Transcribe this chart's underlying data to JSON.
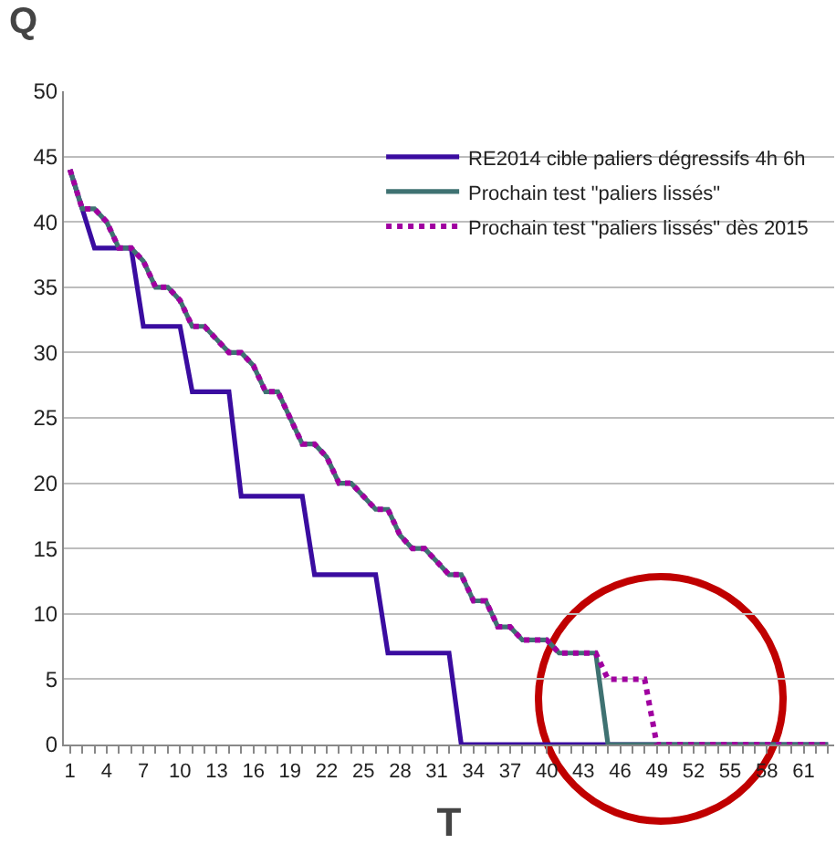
{
  "chart_data": {
    "type": "line",
    "xlabel": "T",
    "ylabel": "Q",
    "x": [
      1,
      2,
      3,
      4,
      5,
      6,
      7,
      8,
      9,
      10,
      11,
      12,
      13,
      14,
      15,
      16,
      17,
      18,
      19,
      20,
      21,
      22,
      23,
      24,
      25,
      26,
      27,
      28,
      29,
      30,
      31,
      32,
      33,
      34,
      35,
      36,
      37,
      38,
      39,
      40,
      41,
      42,
      43,
      44,
      45,
      46,
      47,
      48,
      49,
      50,
      51,
      52,
      53,
      54,
      55,
      56,
      57,
      58,
      59,
      60,
      61,
      62,
      63
    ],
    "series": [
      {
        "name": "RE2014 cible paliers dégressifs 4h 6h",
        "color": "#3a0ca0",
        "line_style": "solid",
        "values": [
          44,
          41,
          38,
          38,
          38,
          38,
          32,
          32,
          32,
          32,
          27,
          27,
          27,
          27,
          19,
          19,
          19,
          19,
          19,
          19,
          13,
          13,
          13,
          13,
          13,
          13,
          7,
          7,
          7,
          7,
          7,
          7,
          0,
          0,
          0,
          0,
          0,
          0,
          0,
          0,
          0,
          0,
          0,
          0,
          0,
          0,
          0,
          0,
          0,
          0,
          0,
          0,
          0,
          0,
          0,
          0,
          0,
          0,
          0,
          0,
          0,
          0,
          0
        ]
      },
      {
        "name": "Prochain test \"paliers lissés\"",
        "color": "#3f7272",
        "line_style": "solid",
        "values": [
          44,
          41,
          41,
          40,
          38,
          38,
          37,
          35,
          35,
          34,
          32,
          32,
          31,
          30,
          30,
          29,
          27,
          27,
          25,
          23,
          23,
          22,
          20,
          20,
          19,
          18,
          18,
          16,
          15,
          15,
          14,
          13,
          13,
          11,
          11,
          9,
          9,
          8,
          8,
          8,
          7,
          7,
          7,
          7,
          0,
          0,
          0,
          0,
          0,
          0,
          0,
          0,
          0,
          0,
          0,
          0,
          0,
          0,
          0,
          0,
          0,
          0,
          0
        ]
      },
      {
        "name": "Prochain test \"paliers lissés\" dès 2015",
        "color": "#a000a0",
        "line_style": "dotted",
        "values": [
          44,
          41,
          41,
          40,
          38,
          38,
          37,
          35,
          35,
          34,
          32,
          32,
          31,
          30,
          30,
          29,
          27,
          27,
          25,
          23,
          23,
          22,
          20,
          20,
          19,
          18,
          18,
          16,
          15,
          15,
          14,
          13,
          13,
          11,
          11,
          9,
          9,
          8,
          8,
          8,
          7,
          7,
          7,
          7,
          5,
          5,
          5,
          5,
          0,
          0,
          0,
          0,
          0,
          0,
          0,
          0,
          0,
          0,
          0,
          0,
          0,
          0,
          0
        ]
      }
    ],
    "xlim": [
      0.5,
      63.5
    ],
    "xticks": [
      1,
      {
        "value": 2,
        "label": null
      },
      {
        "value": 3,
        "label": null
      },
      4,
      {
        "value": 5,
        "label": null
      },
      {
        "value": 6,
        "label": null
      },
      7,
      {
        "value": 8,
        "label": null
      },
      {
        "value": 9,
        "label": null
      },
      10,
      {
        "value": 11,
        "label": null
      },
      {
        "value": 12,
        "label": null
      },
      13,
      {
        "value": 14,
        "label": null
      },
      {
        "value": 15,
        "label": null
      },
      16,
      {
        "value": 17,
        "label": null
      },
      {
        "value": 18,
        "label": null
      },
      19,
      {
        "value": 20,
        "label": null
      },
      {
        "value": 21,
        "label": null
      },
      22,
      {
        "value": 23,
        "label": null
      },
      {
        "value": 24,
        "label": null
      },
      25,
      {
        "value": 26,
        "label": null
      },
      {
        "value": 27,
        "label": null
      },
      28,
      {
        "value": 29,
        "label": null
      },
      {
        "value": 30,
        "label": null
      },
      31,
      {
        "value": 32,
        "label": null
      },
      {
        "value": 33,
        "label": null
      },
      34,
      {
        "value": 35,
        "label": null
      },
      {
        "value": 36,
        "label": null
      },
      37,
      {
        "value": 38,
        "label": null
      },
      {
        "value": 39,
        "label": null
      },
      40,
      {
        "value": 41,
        "label": null
      },
      {
        "value": 42,
        "label": null
      },
      43,
      {
        "value": 44,
        "label": null
      },
      {
        "value": 45,
        "label": null
      },
      46,
      {
        "value": 47,
        "label": null
      },
      {
        "value": 48,
        "label": null
      },
      49,
      {
        "value": 50,
        "label": null
      },
      {
        "value": 51,
        "label": null
      },
      52,
      {
        "value": 53,
        "label": null
      },
      {
        "value": 54,
        "label": null
      },
      55,
      {
        "value": 56,
        "label": null
      },
      {
        "value": 57,
        "label": null
      },
      58,
      {
        "value": 59,
        "label": null
      },
      {
        "value": 60,
        "label": null
      },
      61,
      {
        "value": 62,
        "label": null
      },
      {
        "value": 63,
        "label": null
      }
    ],
    "ylim": [
      0,
      50
    ],
    "yticks": [
      0,
      5,
      10,
      15,
      20,
      25,
      30,
      35,
      40,
      45,
      50
    ],
    "grid": "y",
    "legend": "top right",
    "marker": "none"
  }
}
